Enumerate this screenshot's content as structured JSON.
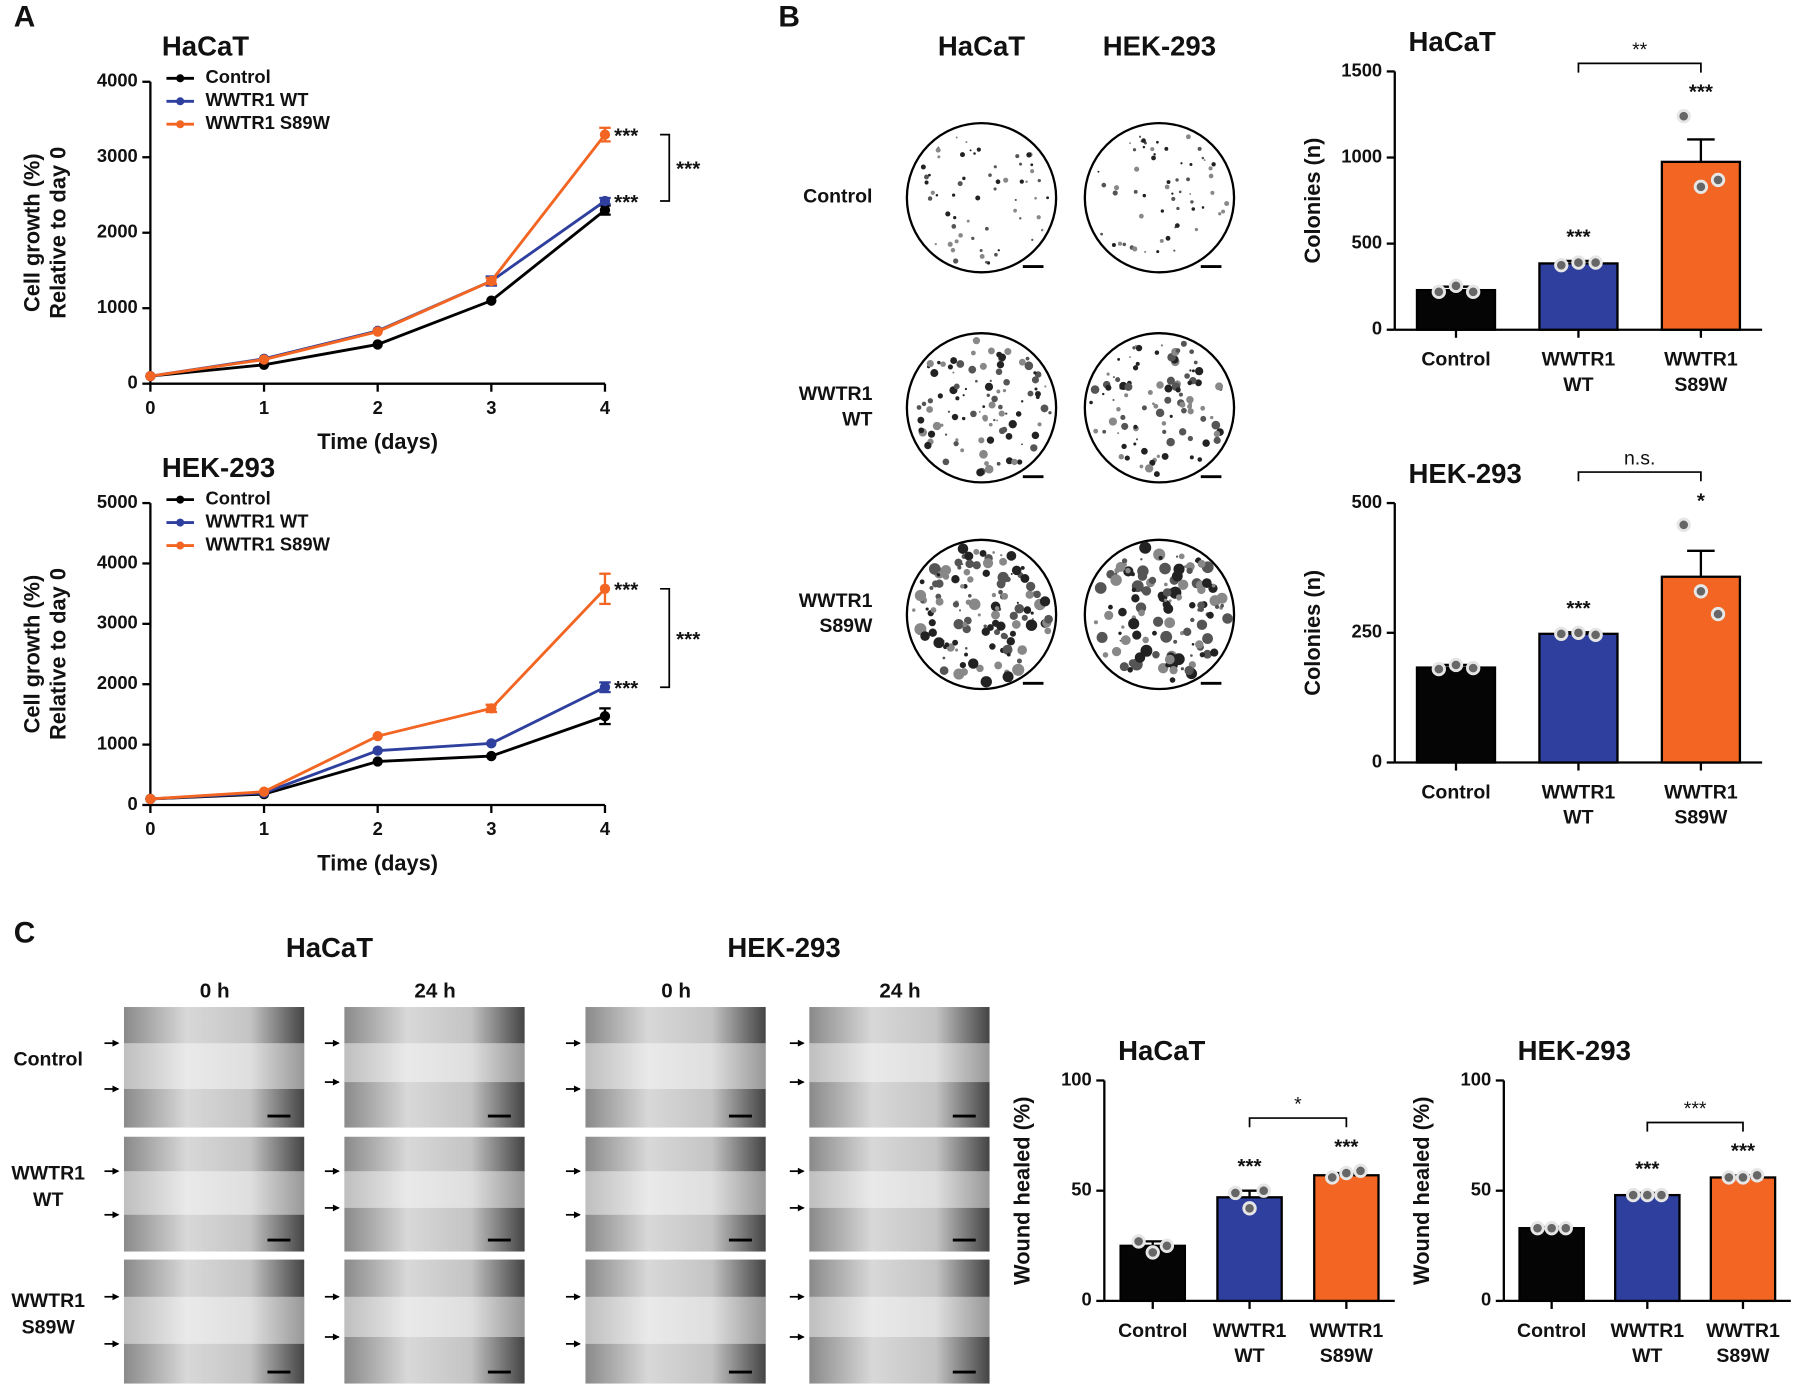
{
  "panel_labels": [
    "A",
    "B",
    "C"
  ],
  "colony_images": {
    "columns": [
      "HaCaT",
      "HEK-293"
    ],
    "rows": [
      [
        "Control"
      ],
      [
        "WWTR1",
        "WT"
      ],
      [
        "WWTR1",
        "S89W"
      ]
    ]
  },
  "wound_images": {
    "cell_lines": [
      "HaCaT",
      "HEK-293"
    ],
    "times": [
      "0 h",
      "24 h"
    ],
    "rows": [
      [
        "Control"
      ],
      [
        "WWTR1",
        "WT"
      ],
      [
        "WWTR1",
        "S89W"
      ]
    ]
  },
  "chart_data": [
    {
      "type": "line",
      "title": "HaCaT",
      "xlabel": "Time (days)",
      "ylabel": [
        "Cell growth (%)",
        "Relative to day 0"
      ],
      "x": [
        0,
        1,
        2,
        3,
        4
      ],
      "xlim": [
        0,
        4
      ],
      "xticks": [
        0,
        1,
        2,
        3,
        4
      ],
      "ylim": [
        0,
        4000
      ],
      "yticks": [
        0,
        1000,
        2000,
        3000,
        4000
      ],
      "series": [
        {
          "name": "Control",
          "color": "#000000",
          "values": [
            100,
            250,
            520,
            1100,
            2300
          ],
          "errors": [
            0,
            0,
            0,
            0,
            60
          ]
        },
        {
          "name": "WWTR1 WT",
          "color": "#2e3f9e",
          "values": [
            100,
            330,
            700,
            1360,
            2420
          ],
          "errors": [
            0,
            0,
            0,
            60,
            40
          ]
        },
        {
          "name": "WWTR1 S89W",
          "color": "#f26522",
          "values": [
            100,
            320,
            690,
            1360,
            3300
          ],
          "errors": [
            0,
            0,
            0,
            40,
            90
          ]
        }
      ],
      "annotations": [
        {
          "text": "***",
          "color": "#f26522"
        },
        {
          "text": "***",
          "color": "#2e3f9e"
        },
        {
          "text": "***",
          "color": "#000000"
        }
      ]
    },
    {
      "type": "line",
      "title": "HEK-293",
      "xlabel": "Time (days)",
      "ylabel": [
        "Cell growth (%)",
        "Relative to day 0"
      ],
      "x": [
        0,
        1,
        2,
        3,
        4
      ],
      "xlim": [
        0,
        4
      ],
      "xticks": [
        0,
        1,
        2,
        3,
        4
      ],
      "ylim": [
        0,
        5000
      ],
      "yticks": [
        0,
        1000,
        2000,
        3000,
        4000,
        5000
      ],
      "series": [
        {
          "name": "Control",
          "color": "#000000",
          "values": [
            100,
            180,
            720,
            810,
            1470
          ],
          "errors": [
            0,
            0,
            0,
            0,
            130
          ]
        },
        {
          "name": "WWTR1 WT",
          "color": "#2e3f9e",
          "values": [
            100,
            200,
            900,
            1020,
            1950
          ],
          "errors": [
            0,
            0,
            0,
            0,
            80
          ]
        },
        {
          "name": "WWTR1 S89W",
          "color": "#f26522",
          "values": [
            100,
            220,
            1140,
            1600,
            3580
          ],
          "errors": [
            0,
            0,
            0,
            60,
            250
          ]
        }
      ],
      "annotations": [
        {
          "text": "***",
          "color": "#f26522"
        },
        {
          "text": "***",
          "color": "#2e3f9e"
        },
        {
          "text": "***",
          "color": "#000000"
        }
      ]
    },
    {
      "type": "bar",
      "title": "HaCaT",
      "ylabel": "Colonies (n)",
      "categories": [
        [
          "Control"
        ],
        [
          "WWTR1",
          "WT"
        ],
        [
          "WWTR1",
          "S89W"
        ]
      ],
      "colors": [
        "#050505",
        "#2e3f9e",
        "#f26522"
      ],
      "values": [
        230,
        385,
        975
      ],
      "errors": [
        20,
        15,
        130
      ],
      "points": [
        [
          220,
          255,
          220
        ],
        [
          375,
          390,
          390
        ],
        [
          1240,
          830,
          870
        ]
      ],
      "ylim": [
        0,
        1500
      ],
      "yticks": [
        0,
        500,
        1000,
        1500
      ],
      "annotations": [
        {
          "text": "***"
        },
        {
          "text": "***"
        },
        {
          "text": "**"
        }
      ]
    },
    {
      "type": "bar",
      "title": "HEK-293",
      "ylabel": "Colonies (n)",
      "categories": [
        [
          "Control"
        ],
        [
          "WWTR1",
          "WT"
        ],
        [
          "WWTR1",
          "S89W"
        ]
      ],
      "colors": [
        "#050505",
        "#2e3f9e",
        "#f26522"
      ],
      "values": [
        183,
        248,
        358
      ],
      "errors": [
        5,
        3,
        50
      ],
      "points": [
        [
          180,
          188,
          182
        ],
        [
          248,
          250,
          246
        ],
        [
          458,
          330,
          286
        ]
      ],
      "ylim": [
        0,
        500
      ],
      "yticks": [
        0,
        250,
        500
      ],
      "annotations": [
        {
          "text": "***"
        },
        {
          "text": "*"
        },
        {
          "text": "n.s."
        }
      ]
    },
    {
      "type": "bar",
      "title": "HaCaT",
      "ylabel": "Wound healed (%)",
      "categories": [
        [
          "Control"
        ],
        [
          "WWTR1",
          "WT"
        ],
        [
          "WWTR1",
          "S89W"
        ]
      ],
      "colors": [
        "#050505",
        "#2e3f9e",
        "#f26522"
      ],
      "values": [
        25,
        47,
        57
      ],
      "errors": [
        2,
        3,
        1
      ],
      "points": [
        [
          27,
          22,
          25
        ],
        [
          49,
          42,
          50
        ],
        [
          56,
          58,
          59
        ]
      ],
      "ylim": [
        0,
        100
      ],
      "yticks": [
        0,
        50,
        100
      ],
      "annotations": [
        {
          "text": "***"
        },
        {
          "text": "***"
        },
        {
          "text": "*"
        }
      ]
    },
    {
      "type": "bar",
      "title": "HEK-293",
      "ylabel": "Wound healed (%)",
      "categories": [
        [
          "Control"
        ],
        [
          "WWTR1",
          "WT"
        ],
        [
          "WWTR1",
          "S89W"
        ]
      ],
      "colors": [
        "#050505",
        "#2e3f9e",
        "#f26522"
      ],
      "values": [
        33,
        48,
        56
      ],
      "errors": [
        0.5,
        1,
        1
      ],
      "points": [
        [
          33,
          33,
          33
        ],
        [
          48,
          48,
          48
        ],
        [
          56,
          56,
          57
        ]
      ],
      "ylim": [
        0,
        100
      ],
      "yticks": [
        0,
        50,
        100
      ],
      "annotations": [
        {
          "text": "***"
        },
        {
          "text": "***"
        },
        {
          "text": "***"
        }
      ]
    }
  ]
}
